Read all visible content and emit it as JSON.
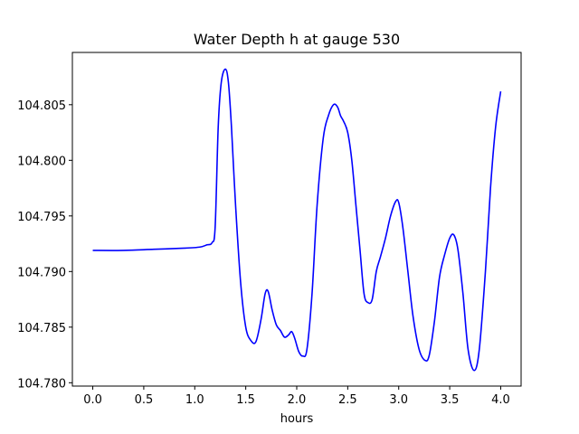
{
  "chart_data": {
    "type": "line",
    "title": "Water Depth h at gauge 530",
    "xlabel": "hours",
    "ylabel": "",
    "xlim": [
      -0.2,
      4.2
    ],
    "ylim": [
      104.7797,
      104.8097
    ],
    "grid": false,
    "line_color": "#0000ff",
    "x_ticks": [
      {
        "value": 0.0,
        "label": "0.0"
      },
      {
        "value": 0.5,
        "label": "0.5"
      },
      {
        "value": 1.0,
        "label": "1.0"
      },
      {
        "value": 1.5,
        "label": "1.5"
      },
      {
        "value": 2.0,
        "label": "2.0"
      },
      {
        "value": 2.5,
        "label": "2.5"
      },
      {
        "value": 3.0,
        "label": "3.0"
      },
      {
        "value": 3.5,
        "label": "3.5"
      },
      {
        "value": 4.0,
        "label": "4.0"
      }
    ],
    "y_ticks": [
      {
        "value": 104.78,
        "label": "104.780"
      },
      {
        "value": 104.785,
        "label": "104.785"
      },
      {
        "value": 104.79,
        "label": "104.790"
      },
      {
        "value": 104.795,
        "label": "104.795"
      },
      {
        "value": 104.8,
        "label": "104.800"
      },
      {
        "value": 104.805,
        "label": "104.805"
      }
    ],
    "series": [
      {
        "x": [
          0.0,
          0.3,
          0.6,
          0.9,
          1.05,
          1.12,
          1.17,
          1.2,
          1.23,
          1.26,
          1.3,
          1.33,
          1.36,
          1.4,
          1.45,
          1.5,
          1.55,
          1.6,
          1.65,
          1.69,
          1.72,
          1.76,
          1.8,
          1.84,
          1.88,
          1.92,
          1.95,
          1.98,
          2.02,
          2.06,
          2.1,
          2.15,
          2.2,
          2.26,
          2.31,
          2.36,
          2.4,
          2.43,
          2.46,
          2.5,
          2.54,
          2.58,
          2.62,
          2.66,
          2.7,
          2.74,
          2.78,
          2.82,
          2.87,
          2.92,
          2.97,
          3.0,
          3.04,
          3.09,
          3.14,
          3.2,
          3.26,
          3.3,
          3.35,
          3.4,
          3.45,
          3.5,
          3.54,
          3.58,
          3.63,
          3.68,
          3.74,
          3.79,
          3.85,
          3.9,
          3.95,
          4.0
        ],
        "y": [
          104.7919,
          104.7919,
          104.792,
          104.7921,
          104.7922,
          104.7924,
          104.7926,
          104.794,
          104.803,
          104.807,
          104.8082,
          104.807,
          104.803,
          104.796,
          104.789,
          104.785,
          104.7838,
          104.7837,
          104.7857,
          104.788,
          104.7882,
          104.7865,
          104.7852,
          104.7847,
          104.7841,
          104.7843,
          104.7846,
          104.784,
          104.7828,
          104.7824,
          104.783,
          104.788,
          104.796,
          104.802,
          104.804,
          104.805,
          104.8048,
          104.804,
          104.8035,
          104.8025,
          104.8,
          104.796,
          104.792,
          104.788,
          104.7872,
          104.7875,
          104.79,
          104.7913,
          104.793,
          104.795,
          104.7963,
          104.7962,
          104.794,
          104.79,
          104.786,
          104.783,
          104.782,
          104.7825,
          104.7855,
          104.7895,
          104.7915,
          104.793,
          104.7933,
          104.792,
          104.788,
          104.783,
          104.7811,
          104.783,
          104.79,
          104.7975,
          104.803,
          104.8062
        ]
      }
    ]
  }
}
